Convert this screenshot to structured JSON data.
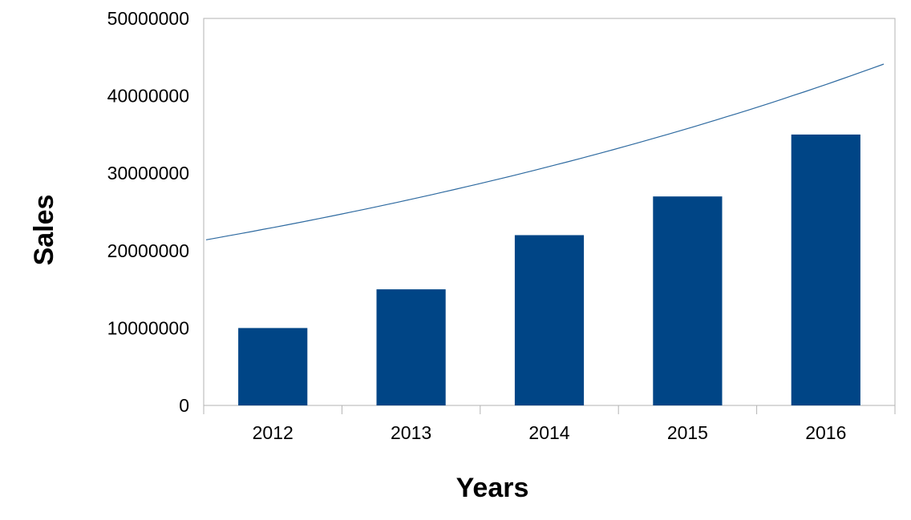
{
  "chart_data": {
    "type": "bar",
    "title": "",
    "xlabel": "Years",
    "ylabel": "Sales",
    "categories": [
      "2012",
      "2013",
      "2014",
      "2015",
      "2016"
    ],
    "series": [
      {
        "values": [
          10000000,
          15000000,
          22000000,
          27000000,
          35000000
        ]
      }
    ],
    "trendline": {
      "type": "exponential",
      "x": [
        "2012",
        "2016"
      ],
      "y": [
        21400000,
        44100000
      ]
    },
    "ylim": [
      0,
      50000000
    ],
    "yticks": [
      "0",
      "10000000",
      "20000000",
      "30000000",
      "40000000",
      "50000000"
    ],
    "grid": false,
    "legend": "none",
    "colors": {
      "bar": "#004586",
      "trendline": "#2e6aa0",
      "axis": "#b3b3b3"
    }
  }
}
